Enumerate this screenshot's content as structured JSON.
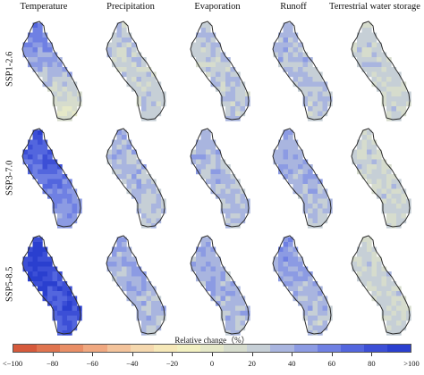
{
  "columns": [
    "Temperature",
    "Precipitation",
    "Evaporation",
    "Runoff",
    "Terrestrial water storage"
  ],
  "rows": [
    "SSP1-2.6",
    "SSP3-7.0",
    "SSP5-8.5"
  ],
  "colorbar": {
    "title": "Relative change（%）",
    "ticks": [
      "<−100",
      "−80",
      "−60",
      "−40",
      "−20",
      "0",
      "20",
      "40",
      "60",
      "80",
      ">100"
    ],
    "colors": [
      "#d65a3c",
      "#e0744f",
      "#e98e66",
      "#f0a880",
      "#f3c39b",
      "#f5d8ae",
      "#f6e8b8",
      "#f3f1c1",
      "#e5e8c8",
      "#d6dccd",
      "#c6cfd6",
      "#a9b5df",
      "#8c9be3",
      "#6f80e3",
      "#5366de",
      "#3c4fd6",
      "#2a3fcf"
    ]
  },
  "panels": [
    {
      "row": "SSP1-2.6",
      "column": "Temperature",
      "level_upper": 0.8,
      "level_lower": 0.22
    },
    {
      "row": "SSP1-2.6",
      "column": "Precipitation",
      "level_upper": 0.42,
      "level_lower": 0.38
    },
    {
      "row": "SSP1-2.6",
      "column": "Evaporation",
      "level_upper": 0.45,
      "level_lower": 0.4
    },
    {
      "row": "SSP1-2.6",
      "column": "Runoff",
      "level_upper": 0.52,
      "level_lower": 0.4
    },
    {
      "row": "SSP1-2.6",
      "column": "Terrestrial water storage",
      "level_upper": 0.38,
      "level_lower": 0.36
    },
    {
      "row": "SSP3-7.0",
      "column": "Temperature",
      "level_upper": 0.95,
      "level_lower": 0.55
    },
    {
      "row": "SSP3-7.0",
      "column": "Precipitation",
      "level_upper": 0.5,
      "level_lower": 0.45
    },
    {
      "row": "SSP3-7.0",
      "column": "Evaporation",
      "level_upper": 0.5,
      "level_lower": 0.44
    },
    {
      "row": "SSP3-7.0",
      "column": "Runoff",
      "level_upper": 0.62,
      "level_lower": 0.42
    },
    {
      "row": "SSP3-7.0",
      "column": "Terrestrial water storage",
      "level_upper": 0.38,
      "level_lower": 0.36
    },
    {
      "row": "SSP5-8.5",
      "column": "Temperature",
      "level_upper": 0.98,
      "level_lower": 0.85
    },
    {
      "row": "SSP5-8.5",
      "column": "Precipitation",
      "level_upper": 0.56,
      "level_lower": 0.46
    },
    {
      "row": "SSP5-8.5",
      "column": "Evaporation",
      "level_upper": 0.56,
      "level_lower": 0.46
    },
    {
      "row": "SSP5-8.5",
      "column": "Runoff",
      "level_upper": 0.66,
      "level_lower": 0.4
    },
    {
      "row": "SSP5-8.5",
      "column": "Terrestrial water storage",
      "level_upper": 0.38,
      "level_lower": 0.36
    }
  ]
}
